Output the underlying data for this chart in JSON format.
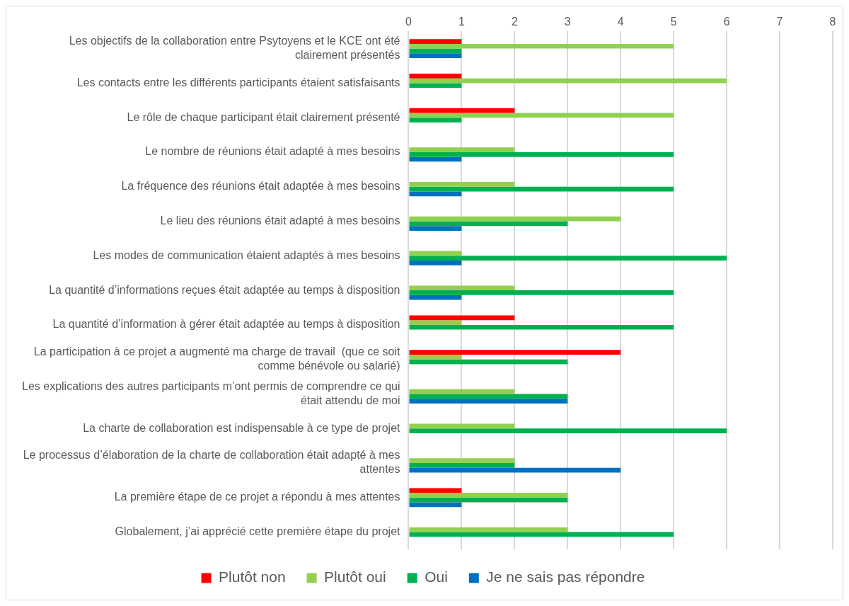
{
  "chart_data": {
    "type": "bar",
    "orientation": "horizontal",
    "categories": [
      "Les objectifs de la collaboration entre Psytoyens et le KCE ont été clairement présentés",
      "Les contacts entre les différents participants étaient satisfaisants",
      "Le rôle de chaque participant était clairement présenté",
      "Le nombre de réunions était adapté à mes besoins",
      "La fréquence des réunions était adaptée à mes besoins",
      "Le lieu des réunions était adapté à mes besoins",
      "Les modes de communication étaient adaptés à mes besoins",
      "La quantité d’informations reçues était adaptée au temps à disposition",
      "La quantité d’information à gérer était adaptée au temps à disposition",
      "La participation à ce projet a augmenté ma charge de travail  (que ce soit comme bénévole ou salarié)",
      "Les explications des autres participants m’ont permis de comprendre ce qui était attendu de moi",
      "La charte de collaboration est indispensable à ce type de projet",
      "Le processus d’élaboration de la charte de collaboration était adapté à mes attentes",
      "La première étape de ce projet a répondu à mes attentes",
      "Globalement, j’ai apprécié cette première étape du projet"
    ],
    "series": [
      {
        "name": "Plutôt non",
        "color": "#ff0000",
        "values": [
          1,
          1,
          2,
          null,
          null,
          null,
          null,
          null,
          2,
          4,
          null,
          null,
          null,
          1,
          null
        ]
      },
      {
        "name": "Plutôt oui",
        "color": "#92d050",
        "values": [
          5,
          6,
          5,
          2,
          2,
          4,
          1,
          2,
          1,
          1,
          2,
          2,
          2,
          3,
          3
        ]
      },
      {
        "name": "Oui",
        "color": "#00b050",
        "values": [
          1,
          1,
          1,
          5,
          5,
          3,
          6,
          5,
          5,
          3,
          3,
          6,
          2,
          3,
          5
        ]
      },
      {
        "name": "Je ne sais pas répondre",
        "color": "#0070c0",
        "values": [
          1,
          null,
          null,
          1,
          1,
          1,
          1,
          1,
          null,
          null,
          3,
          null,
          4,
          1,
          null
        ]
      }
    ],
    "xlim": [
      0,
      8
    ],
    "xticks": [
      0,
      1,
      2,
      3,
      4,
      5,
      6,
      7,
      8
    ],
    "grid": "x",
    "legend": "bottom"
  }
}
